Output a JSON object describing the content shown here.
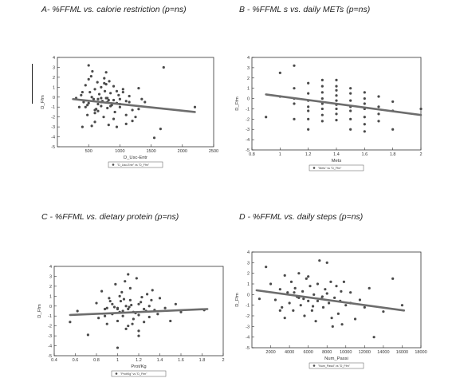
{
  "chart_data": [
    {
      "id": "A",
      "type": "scatter",
      "title": "A- %FFML vs. calorie restriction (p=ns)",
      "xlabel": "D_Usc-Entr",
      "ylabel": "D_Ffm",
      "xlim": [
        0,
        2500
      ],
      "ylim": [
        -5,
        4
      ],
      "xticks": [
        500,
        1000,
        1500,
        2000,
        2500
      ],
      "yticks": [
        -5,
        -4,
        -3,
        -2,
        -1,
        0,
        1,
        2,
        3,
        4
      ],
      "legend": "\"D_Usc-Entr\" vs \"D_Ffm\"",
      "legend_position": "bottom-center",
      "fit_line": {
        "x": [
          250,
          2200
        ],
        "y": [
          -0.2,
          -1.5
        ]
      },
      "points": {
        "x": [
          380,
          420,
          450,
          480,
          500,
          520,
          550,
          560,
          580,
          600,
          620,
          640,
          650,
          670,
          700,
          720,
          740,
          760,
          780,
          800,
          820,
          830,
          850,
          870,
          900,
          920,
          950,
          980,
          1000,
          1050,
          1100,
          1150,
          1200,
          1250,
          1300,
          1350,
          1700,
          2200,
          450,
          500,
          540,
          600,
          650,
          700,
          750,
          800,
          820,
          900,
          950,
          1000,
          1050,
          1100,
          1200,
          1400,
          1550,
          1650,
          300,
          350,
          400,
          600,
          700,
          780,
          850,
          950,
          1100,
          550,
          650,
          700,
          750,
          800,
          900,
          1000,
          1150,
          1300,
          400,
          500,
          600,
          480,
          780
        ],
        "y": [
          0.2,
          -0.5,
          1.2,
          -1.8,
          3.2,
          0.5,
          -2.9,
          2.6,
          -0.2,
          0.8,
          -1.2,
          1.5,
          -0.7,
          0.3,
          1.0,
          -0.4,
          -2.0,
          0.6,
          2.5,
          -1.1,
          -0.3,
          1.6,
          0.4,
          -0.8,
          1.1,
          -1.5,
          -0.6,
          0.2,
          -0.2,
          0.8,
          -0.4,
          -0.5,
          -1.3,
          -2.0,
          0.9,
          -0.2,
          3.0,
          -1.0,
          -1.0,
          -0.6,
          2.1,
          -2.5,
          -1.4,
          -0.9,
          1.9,
          -0.1,
          -2.8,
          -0.3,
          -3.0,
          -0.7,
          0.5,
          -1.8,
          -2.4,
          -0.5,
          -4.1,
          -3.2,
          -0.1,
          -1.0,
          0.5,
          -1.6,
          -0.5,
          1.3,
          -0.9,
          0.6,
          -2.7,
          0.0,
          -0.2,
          -0.1,
          1.4,
          -0.5,
          -2.2,
          -1.0,
          0.1,
          -1.2,
          -3.0,
          1.8,
          -1.3,
          -0.8,
          -0.1
        ]
      }
    },
    {
      "id": "B",
      "type": "scatter",
      "title": "B - %FFML s vs. daily METs  (p=ns)",
      "xlabel": "Mets",
      "ylabel": "D_Ffm",
      "xlim": [
        0.8,
        2.0
      ],
      "ylim": [
        -5,
        4
      ],
      "xticks": [
        0.8,
        1.0,
        1.2,
        1.4,
        1.6,
        1.8,
        2.0
      ],
      "yticks": [
        -5,
        -4,
        -3,
        -2,
        -1,
        0,
        1,
        2,
        3,
        4
      ],
      "legend": "\"Mets\" vs \"D_Ffm\"",
      "legend_position": "bottom-center",
      "fit_line": {
        "x": [
          0.9,
          2.0
        ],
        "y": [
          0.4,
          -1.6
        ]
      },
      "points": {
        "x": [
          0.9,
          1.0,
          1.0,
          1.1,
          1.1,
          1.1,
          1.1,
          1.1,
          1.2,
          1.2,
          1.2,
          1.2,
          1.2,
          1.2,
          1.2,
          1.3,
          1.3,
          1.3,
          1.3,
          1.3,
          1.3,
          1.3,
          1.3,
          1.4,
          1.4,
          1.4,
          1.4,
          1.4,
          1.4,
          1.4,
          1.4,
          1.4,
          1.5,
          1.5,
          1.5,
          1.5,
          1.5,
          1.5,
          1.5,
          1.6,
          1.6,
          1.6,
          1.6,
          1.6,
          1.6,
          1.6,
          1.7,
          1.7,
          1.7,
          1.7,
          1.8,
          1.8,
          1.8,
          2.0
        ],
        "y": [
          -1.8,
          2.5,
          0.2,
          3.2,
          1.0,
          0.0,
          -0.5,
          -2.0,
          1.5,
          0.5,
          -0.2,
          -0.8,
          -1.2,
          -2.0,
          -3.0,
          1.8,
          1.2,
          0.6,
          0.0,
          -0.5,
          -1.0,
          -1.6,
          -2.2,
          1.8,
          1.2,
          0.8,
          0.3,
          -0.2,
          -0.6,
          -1.0,
          -1.5,
          -2.1,
          1.0,
          0.5,
          -0.2,
          -0.8,
          -1.2,
          -2.0,
          -3.0,
          0.6,
          0.0,
          -0.5,
          -1.0,
          -1.8,
          -2.5,
          -3.2,
          0.2,
          -0.8,
          -1.5,
          -2.2,
          -0.3,
          -1.2,
          -3.0,
          -1.0
        ]
      }
    },
    {
      "id": "C",
      "type": "scatter",
      "title": "C - %FFML vs. dietary protein (p=ns)",
      "xlabel": "Prot/Kg",
      "ylabel": "D_Ffm",
      "xlim": [
        0.4,
        2.0
      ],
      "ylim": [
        -5,
        4
      ],
      "xticks": [
        0.4,
        0.6,
        0.8,
        1.0,
        1.2,
        1.4,
        1.6,
        1.8,
        2.0
      ],
      "yticks": [
        -5,
        -4,
        -3,
        -2,
        -1,
        0,
        1,
        2,
        3,
        4
      ],
      "legend": "\"Prot/Kg\" vs \"D_Ffm\"",
      "legend_position": "bottom-center",
      "fit_line": {
        "x": [
          0.55,
          1.85
        ],
        "y": [
          -0.9,
          -0.3
        ]
      },
      "points": {
        "x": [
          0.55,
          0.62,
          0.72,
          0.8,
          0.82,
          0.85,
          0.88,
          0.9,
          0.92,
          0.95,
          0.95,
          0.98,
          1.0,
          1.0,
          1.0,
          1.02,
          1.03,
          1.05,
          1.05,
          1.07,
          1.08,
          1.1,
          1.1,
          1.1,
          1.12,
          1.12,
          1.15,
          1.15,
          1.18,
          1.2,
          1.2,
          1.2,
          1.22,
          1.25,
          1.25,
          1.28,
          1.3,
          1.3,
          1.32,
          1.35,
          1.4,
          1.45,
          1.5,
          1.55,
          1.6,
          1.82,
          0.88,
          0.93,
          0.97,
          1.04,
          1.08,
          1.13,
          1.17,
          1.23,
          1.27,
          1.33,
          1.38,
          1.0,
          1.06,
          1.14,
          1.2,
          1.11,
          0.9,
          1.02
        ],
        "y": [
          -1.6,
          -0.5,
          -2.9,
          0.3,
          -1.2,
          1.5,
          -0.3,
          -1.8,
          0.8,
          0.2,
          -0.8,
          2.2,
          -0.2,
          -1.5,
          -4.2,
          1.0,
          0.5,
          -0.5,
          -1.0,
          2.5,
          0.0,
          3.2,
          -0.3,
          -2.0,
          1.8,
          0.6,
          -0.6,
          -1.3,
          2.8,
          0.2,
          -0.9,
          -3.0,
          0.4,
          -0.3,
          -1.6,
          1.2,
          0.0,
          -1.1,
          0.6,
          -0.4,
          0.8,
          -0.2,
          -1.5,
          0.2,
          -0.6,
          -0.4,
          -1.0,
          0.5,
          -0.1,
          1.4,
          -2.3,
          0.1,
          -0.7,
          0.9,
          -0.5,
          1.6,
          -0.8,
          -0.3,
          0.7,
          -1.8,
          -2.5,
          -0.1,
          -0.2,
          -0.6
        ]
      }
    },
    {
      "id": "D",
      "type": "scatter",
      "title": "D - %FFML vs. daily steps (p=ns)",
      "xlabel": "Num_Passi",
      "ylabel": "D_Ffm",
      "xlim": [
        0,
        18000
      ],
      "ylim": [
        -5,
        4
      ],
      "xticks": [
        2000,
        4000,
        6000,
        8000,
        10000,
        12000,
        14000,
        16000,
        18000
      ],
      "yticks": [
        -5,
        -4,
        -3,
        -2,
        -1,
        0,
        1,
        2,
        3,
        4
      ],
      "legend": "\"Num_Passi\" vs \"D_Ffm\"",
      "legend_position": "bottom-center",
      "fit_line": {
        "x": [
          500,
          16200
        ],
        "y": [
          0.4,
          -1.5
        ]
      },
      "points": {
        "x": [
          800,
          1500,
          2000,
          2500,
          3000,
          3200,
          3500,
          3800,
          4000,
          4200,
          4400,
          4600,
          4800,
          5000,
          5200,
          5400,
          5600,
          5800,
          6000,
          6200,
          6400,
          6600,
          6800,
          7000,
          7200,
          7400,
          7600,
          7800,
          8000,
          8200,
          8400,
          8600,
          8800,
          9000,
          9200,
          9400,
          9600,
          9800,
          10000,
          10500,
          11000,
          11500,
          12000,
          12500,
          13000,
          14000,
          15000,
          16000,
          3000,
          4500,
          5500,
          6500,
          7500,
          8500,
          9500,
          10500,
          6000,
          7000,
          8000,
          3500,
          5000
        ],
        "y": [
          -0.4,
          2.6,
          1.0,
          -0.5,
          0.5,
          -1.2,
          1.8,
          0.2,
          -0.8,
          1.2,
          -1.5,
          0.6,
          -0.2,
          2.0,
          -1.0,
          0.3,
          -2.0,
          1.5,
          -0.6,
          0.8,
          -1.5,
          0.0,
          -2.5,
          1.0,
          3.2,
          -0.4,
          -1.2,
          0.5,
          3.0,
          -0.8,
          1.2,
          -3.0,
          -0.3,
          0.8,
          -1.8,
          -0.6,
          -2.8,
          1.2,
          -1.0,
          0.2,
          -2.3,
          -0.5,
          -1.2,
          0.6,
          -4.0,
          -1.6,
          1.5,
          -1.0,
          -1.5,
          0.2,
          -0.4,
          -1.1,
          -0.2,
          -2.2,
          0.3,
          -0.8,
          1.7,
          -0.6,
          0.1,
          -2.2,
          -0.3
        ]
      }
    }
  ]
}
